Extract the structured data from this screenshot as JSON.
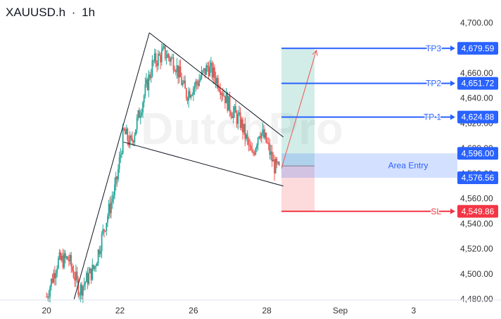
{
  "header": {
    "symbol": "XAUUSD.h",
    "separator": "·",
    "timeframe": "1h"
  },
  "watermark": "DutchPro",
  "colors": {
    "up": "#26a69a",
    "down": "#ef5350",
    "tp": "#2962ff",
    "sl": "#f23645",
    "axis_text": "#333333"
  },
  "chart_data": {
    "type": "candlestick",
    "title": "",
    "xlabel": "",
    "ylabel": "",
    "ylim": [
      4472,
      4708
    ],
    "y_ticks": [
      "4,480.00",
      "4,500.00",
      "4,520.00",
      "4,540.00",
      "4,560.00",
      "4,580.00",
      "4,600.00",
      "4,620.00",
      "4,640.00",
      "4,660.00",
      "4,700.00"
    ],
    "y_tick_values": [
      4480,
      4500,
      4520,
      4540,
      4560,
      4580,
      4600,
      4620,
      4640,
      4660,
      4700
    ],
    "x_ticks": [
      "20",
      "22",
      "26",
      "28",
      "Sep",
      "3"
    ],
    "x_tick_index": [
      0,
      2,
      4,
      6,
      8,
      10
    ],
    "x_index_range": [
      -1,
      11
    ],
    "price_path": [
      [
        0.0,
        4482
      ],
      [
        0.3,
        4510
      ],
      [
        0.6,
        4512
      ],
      [
        0.9,
        4487
      ],
      [
        1.3,
        4505
      ],
      [
        1.6,
        4540
      ],
      [
        1.9,
        4572
      ],
      [
        2.1,
        4613
      ],
      [
        2.3,
        4603
      ],
      [
        2.6,
        4636
      ],
      [
        2.9,
        4668
      ],
      [
        3.2,
        4676
      ],
      [
        3.5,
        4668
      ],
      [
        3.8,
        4643
      ],
      [
        4.1,
        4652
      ],
      [
        4.4,
        4665
      ],
      [
        4.7,
        4652
      ],
      [
        5.0,
        4632
      ],
      [
        5.3,
        4620
      ],
      [
        5.6,
        4593
      ],
      [
        5.8,
        4615
      ],
      [
        6.0,
        4604
      ],
      [
        6.2,
        4586
      ],
      [
        6.35,
        4582
      ]
    ],
    "levels": [
      {
        "name": "TP3",
        "label": "TP3",
        "value": 4679.59,
        "badge": "4,679.59",
        "kind": "tp"
      },
      {
        "name": "TP2",
        "label": "TP2",
        "value": 4651.72,
        "badge": "4,651.72",
        "kind": "tp"
      },
      {
        "name": "TP1",
        "label": "TP 1",
        "value": 4624.88,
        "badge": "4,624.88",
        "kind": "tp"
      },
      {
        "name": "Area Entry Top",
        "label": "",
        "value": 4596.0,
        "badge": "4,596.00",
        "kind": "tp"
      },
      {
        "name": "Area Entry Bottom",
        "label": "",
        "value": 4576.56,
        "badge": "4,576.56",
        "kind": "tp"
      },
      {
        "name": "SL",
        "label": "SL",
        "value": 4549.86,
        "badge": "4,549.86",
        "kind": "sl"
      }
    ],
    "entry_zone": {
      "label": "Area Entry",
      "high": 4596.0,
      "low": 4576.56
    },
    "position": {
      "entry": 4586,
      "target": 4679.59,
      "stop": 4549.86,
      "x_start": 6.4,
      "x_end": 7.3
    },
    "pattern_lines": [
      {
        "name": "impulse-line",
        "from": [
          0.75,
          4480
        ],
        "to": [
          2.8,
          4692
        ]
      },
      {
        "name": "upper-wedge-line",
        "from": [
          2.8,
          4692
        ],
        "to": [
          6.45,
          4609
        ]
      },
      {
        "name": "lower-wedge-line",
        "from": [
          2.1,
          4605
        ],
        "to": [
          6.45,
          4570
        ]
      }
    ],
    "projection_arrow": {
      "from": [
        6.4,
        4584
      ],
      "to": [
        7.35,
        4678
      ]
    }
  }
}
